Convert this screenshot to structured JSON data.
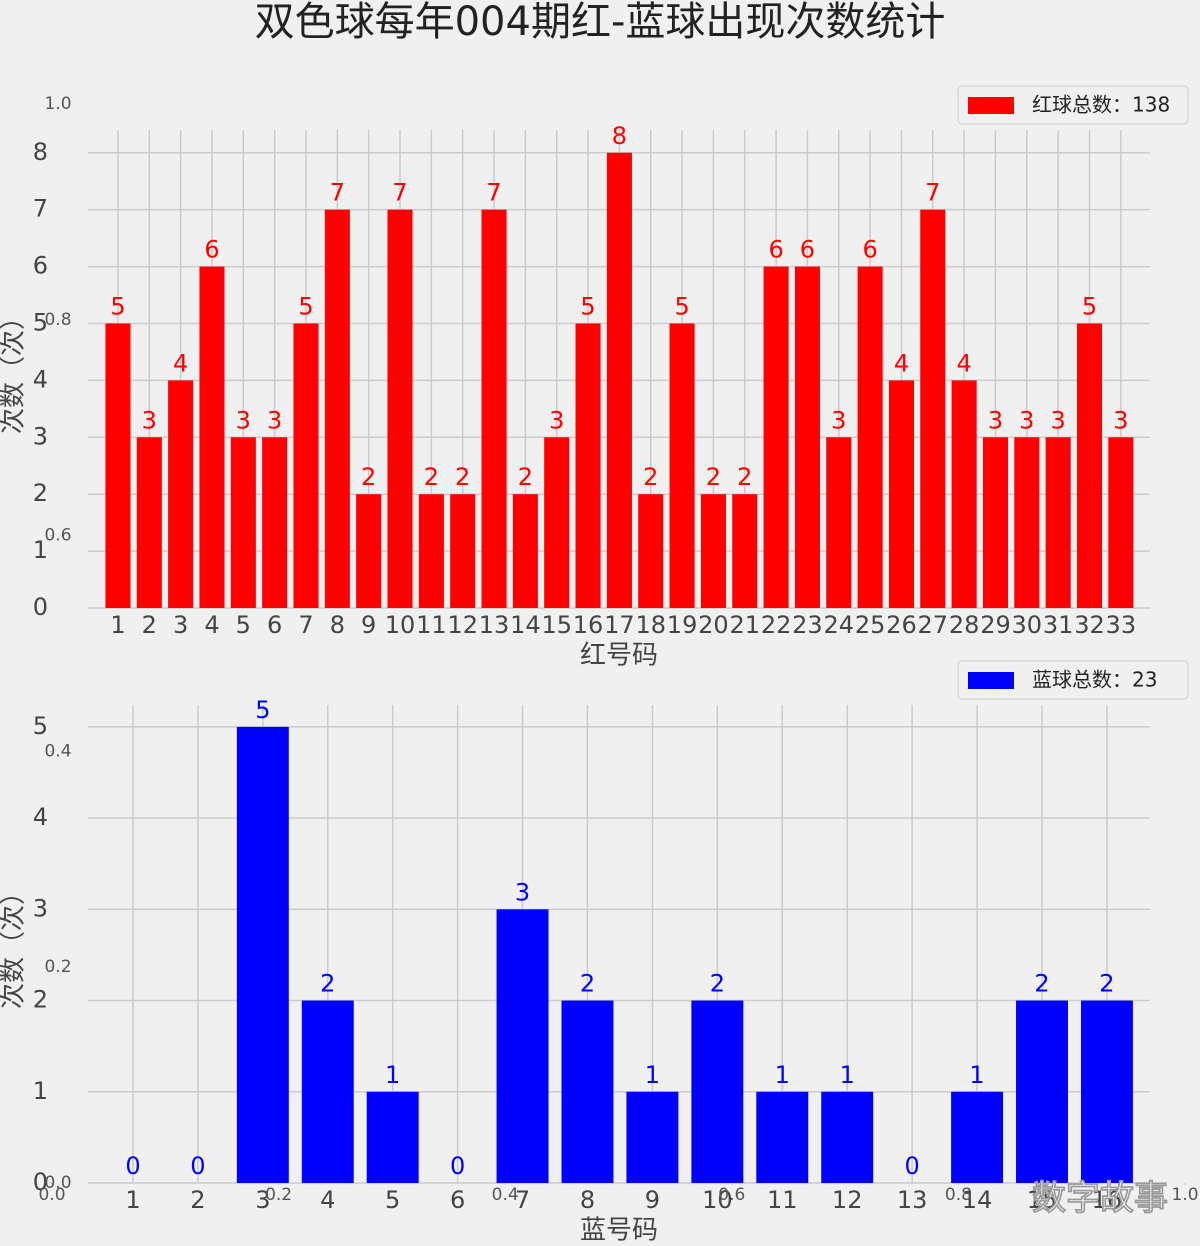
{
  "title": "双色球每年004期红-蓝球出现次数统计",
  "watermark": "数字故事",
  "chart_data": [
    {
      "type": "bar",
      "xlabel": "红号码",
      "ylabel": "次数（次）",
      "categories": [
        "1",
        "2",
        "3",
        "4",
        "5",
        "6",
        "7",
        "8",
        "9",
        "10",
        "11",
        "12",
        "13",
        "14",
        "15",
        "16",
        "17",
        "18",
        "19",
        "20",
        "21",
        "22",
        "23",
        "24",
        "25",
        "26",
        "27",
        "28",
        "29",
        "30",
        "31",
        "32",
        "33"
      ],
      "series": [
        {
          "name": "红球总数：138",
          "color": "#ff0000",
          "values": [
            5,
            3,
            4,
            6,
            3,
            3,
            5,
            7,
            2,
            7,
            2,
            2,
            7,
            2,
            3,
            5,
            8,
            2,
            5,
            2,
            2,
            6,
            6,
            3,
            6,
            4,
            7,
            4,
            3,
            3,
            3,
            5,
            3
          ]
        }
      ],
      "ylim": [
        0,
        8.4
      ],
      "yticks": [
        0,
        1,
        2,
        3,
        4,
        5,
        6,
        7,
        8
      ],
      "grid": true,
      "legend": "upper right"
    },
    {
      "type": "bar",
      "xlabel": "蓝号码",
      "ylabel": "次数（次）",
      "categories": [
        "1",
        "2",
        "3",
        "4",
        "5",
        "6",
        "7",
        "8",
        "9",
        "10",
        "11",
        "12",
        "13",
        "14",
        "15",
        "16"
      ],
      "series": [
        {
          "name": "蓝球总数：23",
          "color": "#0000ff",
          "values": [
            0,
            0,
            5,
            2,
            1,
            0,
            3,
            2,
            1,
            2,
            1,
            1,
            0,
            1,
            2,
            2
          ]
        }
      ],
      "ylim": [
        0,
        5.24
      ],
      "yticks": [
        0,
        1,
        2,
        3,
        4,
        5
      ],
      "grid": true,
      "legend": "upper right"
    },
    {
      "type": "axes",
      "xlim": [
        0,
        1
      ],
      "xticks": [
        {
          "value": 0,
          "label": "0.0"
        },
        {
          "value": 0.2,
          "label": "0.2"
        },
        {
          "value": 0.4,
          "label": "0.4"
        },
        {
          "value": 0.6,
          "label": "0.6"
        },
        {
          "value": 0.8,
          "label": "0.8"
        },
        {
          "value": 1,
          "label": "1.0"
        }
      ],
      "ylim": [
        0,
        1
      ],
      "yticks": [
        {
          "value": 0,
          "label": "0.0"
        },
        {
          "value": 0.2,
          "label": "0.2"
        },
        {
          "value": 0.4,
          "label": "0.4"
        },
        {
          "value": 0.6,
          "label": "0.6"
        },
        {
          "value": 0.8,
          "label": "0.8"
        },
        {
          "value": 1,
          "label": "1.0"
        }
      ]
    }
  ]
}
